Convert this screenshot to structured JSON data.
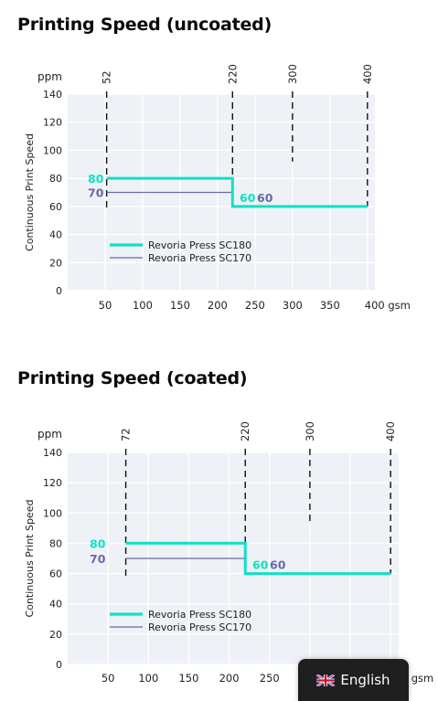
{
  "section_titles": [
    "Printing Speed (uncoated)",
    "Printing Speed (coated)"
  ],
  "language_selector": {
    "label": "English",
    "flag_icon": "uk-flag-icon"
  },
  "colors": {
    "sc180": "#12e0c4",
    "sc170": "#6b68a8",
    "plot_bg": "#eef1f6",
    "grid": "#ffffff"
  },
  "chart_data": [
    {
      "type": "line",
      "title": "Printing Speed (uncoated)",
      "ylabel": "Continuous Print Speed",
      "yunit": "ppm",
      "xunit": "gsm",
      "xlim": [
        0,
        410
      ],
      "ylim": [
        0,
        140
      ],
      "xticks": [
        50,
        100,
        150,
        200,
        250,
        300,
        350,
        400
      ],
      "yticks": [
        0,
        20,
        40,
        60,
        80,
        100,
        120,
        140
      ],
      "xtick_labels": [
        "50",
        "100",
        "150",
        "200",
        "250",
        "300",
        "350",
        "400 gsm"
      ],
      "markers": [
        {
          "x": 52,
          "label": "52"
        },
        {
          "x": 220,
          "label": "220"
        },
        {
          "x": 300,
          "label": "300"
        },
        {
          "x": 400,
          "label": "400"
        }
      ],
      "series": [
        {
          "name": "Revoria Press SC180",
          "x": [
            52,
            220,
            220,
            400
          ],
          "y": [
            80,
            80,
            60,
            60
          ]
        },
        {
          "name": "Revoria Press SC170",
          "x": [
            52,
            220,
            220,
            400
          ],
          "y": [
            70,
            70,
            60,
            60
          ]
        }
      ],
      "value_labels": {
        "sc180_left": "80",
        "sc170_left": "70",
        "sc180_right": "60",
        "sc170_right": "60"
      },
      "grid": true,
      "legend": "lower-left"
    },
    {
      "type": "line",
      "title": "Printing Speed (coated)",
      "ylabel": "Continuous Print Speed",
      "yunit": "ppm",
      "xunit": "gsm",
      "xlim": [
        0,
        410
      ],
      "ylim": [
        0,
        140
      ],
      "xticks": [
        50,
        100,
        150,
        200,
        250,
        300,
        350,
        400
      ],
      "yticks": [
        0,
        20,
        40,
        60,
        80,
        100,
        120,
        140
      ],
      "xtick_labels": [
        "50",
        "100",
        "150",
        "200",
        "250",
        "300",
        "350",
        "400 gsm"
      ],
      "markers": [
        {
          "x": 72,
          "label": "72"
        },
        {
          "x": 220,
          "label": "220"
        },
        {
          "x": 300,
          "label": "300"
        },
        {
          "x": 400,
          "label": "400"
        }
      ],
      "series": [
        {
          "name": "Revoria Press SC180",
          "x": [
            72,
            220,
            220,
            400
          ],
          "y": [
            80,
            80,
            60,
            60
          ]
        },
        {
          "name": "Revoria Press SC170",
          "x": [
            72,
            220,
            220,
            400
          ],
          "y": [
            70,
            70,
            60,
            60
          ]
        }
      ],
      "value_labels": {
        "sc180_left": "80",
        "sc170_left": "70",
        "sc180_right": "60",
        "sc170_right": "60"
      },
      "grid": true,
      "legend": "lower-left"
    }
  ]
}
